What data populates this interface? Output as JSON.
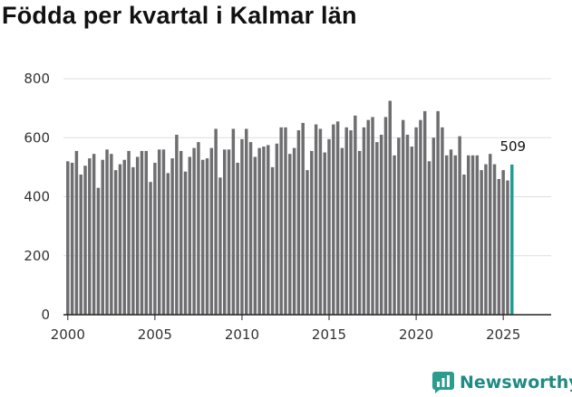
{
  "title": "Födda per kvartal i Kalmar län",
  "brand": {
    "name": "Newsworthy",
    "icon": "bar-chart-icon",
    "color": "#2a9d8f"
  },
  "chart_data": {
    "type": "bar",
    "title": "Födda per kvartal i Kalmar län",
    "xlabel": "",
    "ylabel": "",
    "ylim": [
      0,
      800
    ],
    "yticks": [
      0,
      200,
      400,
      600,
      800
    ],
    "xticks": [
      2000,
      2005,
      2010,
      2015,
      2020,
      2025
    ],
    "grid": true,
    "bar_color": "#6e6d70",
    "highlight_color": "#1f9c94",
    "start_year": 2000,
    "start_quarter": 1,
    "values": [
      520,
      515,
      555,
      475,
      505,
      530,
      545,
      430,
      525,
      560,
      545,
      490,
      510,
      525,
      555,
      500,
      535,
      555,
      555,
      450,
      515,
      560,
      560,
      480,
      530,
      610,
      555,
      485,
      535,
      565,
      585,
      525,
      530,
      565,
      630,
      465,
      560,
      560,
      630,
      515,
      595,
      630,
      585,
      535,
      565,
      570,
      575,
      500,
      580,
      635,
      635,
      545,
      565,
      625,
      650,
      490,
      555,
      645,
      630,
      550,
      595,
      645,
      655,
      565,
      635,
      625,
      675,
      555,
      635,
      660,
      670,
      585,
      610,
      670,
      725,
      540,
      600,
      660,
      610,
      570,
      635,
      660,
      690,
      520,
      600,
      690,
      635,
      540,
      560,
      540,
      605,
      475,
      540,
      540,
      540,
      490,
      510,
      545,
      510,
      460,
      490,
      455,
      509
    ],
    "highlight_last": true,
    "last_label": "509"
  }
}
